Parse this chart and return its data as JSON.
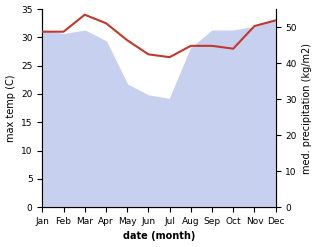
{
  "months": [
    "Jan",
    "Feb",
    "Mar",
    "Apr",
    "May",
    "Jun",
    "Jul",
    "Aug",
    "Sep",
    "Oct",
    "Nov",
    "Dec"
  ],
  "temp": [
    31.0,
    31.0,
    34.0,
    32.5,
    29.5,
    27.0,
    26.5,
    28.5,
    28.5,
    28.0,
    32.0,
    33.0
  ],
  "precip_right": [
    49,
    48,
    49,
    46,
    34,
    31,
    30,
    44,
    49,
    49,
    50,
    52
  ],
  "temp_color": "#c0392b",
  "precip_fill_color": "#c8d0f0",
  "xlabel": "date (month)",
  "ylabel_left": "max temp (C)",
  "ylabel_right": "med. precipitation (kg/m2)",
  "ylim_left": [
    0,
    35
  ],
  "ylim_right": [
    0,
    55
  ],
  "yticks_left": [
    0,
    5,
    10,
    15,
    20,
    25,
    30,
    35
  ],
  "yticks_right": [
    0,
    10,
    20,
    30,
    40,
    50
  ],
  "temp_linewidth": 1.5,
  "xlabel_fontsize": 7,
  "ylabel_fontsize": 7,
  "tick_fontsize": 6.5
}
